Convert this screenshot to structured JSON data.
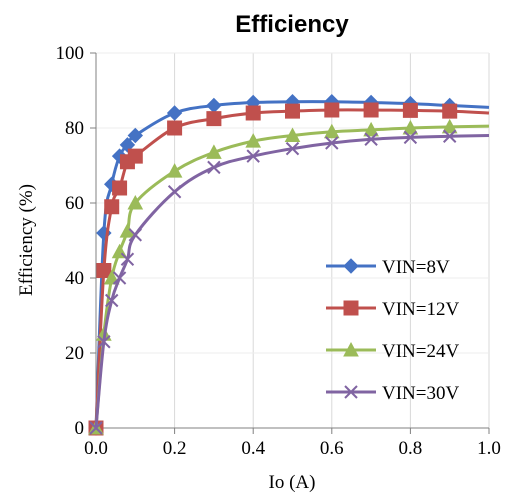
{
  "chart_data": {
    "type": "line",
    "title": "Efficiency",
    "xlabel": "Io (A)",
    "ylabel": "Efficiency (%)",
    "xlim": [
      0,
      1.0
    ],
    "ylim": [
      0,
      100
    ],
    "x_ticks": [
      "0.0",
      "0.2",
      "0.4",
      "0.6",
      "0.8",
      "1.0"
    ],
    "y_ticks": [
      "0",
      "20",
      "40",
      "60",
      "80",
      "100"
    ],
    "grid": "vertical",
    "legend_position": "right",
    "series": [
      {
        "name": "VIN=8V",
        "color": "#4472C4",
        "marker": "diamond",
        "points": [
          [
            0,
            0
          ],
          [
            0.02,
            52
          ],
          [
            0.04,
            65
          ],
          [
            0.06,
            72.5
          ],
          [
            0.08,
            75.5
          ],
          [
            0.1,
            78
          ],
          [
            0.2,
            84
          ],
          [
            0.3,
            86
          ],
          [
            0.4,
            86.8
          ],
          [
            0.5,
            87
          ],
          [
            0.6,
            87
          ],
          [
            0.7,
            86.8
          ],
          [
            0.8,
            86.5
          ],
          [
            0.9,
            86
          ],
          [
            1.0,
            85.5
          ]
        ],
        "marker_points": [
          0,
          1,
          2,
          3,
          4,
          5,
          6,
          7,
          8,
          9,
          10,
          11,
          12,
          13
        ]
      },
      {
        "name": "VIN=12V",
        "color": "#C0504D",
        "marker": "square",
        "points": [
          [
            0,
            0
          ],
          [
            0.02,
            42
          ],
          [
            0.04,
            59
          ],
          [
            0.06,
            64
          ],
          [
            0.08,
            71
          ],
          [
            0.1,
            72.5
          ],
          [
            0.2,
            80
          ],
          [
            0.3,
            82.5
          ],
          [
            0.4,
            84
          ],
          [
            0.5,
            84.5
          ],
          [
            0.6,
            84.8
          ],
          [
            0.7,
            84.8
          ],
          [
            0.8,
            84.7
          ],
          [
            0.9,
            84.5
          ],
          [
            1.0,
            84
          ]
        ],
        "marker_points": [
          0,
          1,
          2,
          3,
          4,
          5,
          6,
          7,
          8,
          9,
          10,
          11,
          12,
          13
        ]
      },
      {
        "name": "VIN=24V",
        "color": "#9BBB59",
        "marker": "triangle",
        "points": [
          [
            0,
            0
          ],
          [
            0.02,
            25
          ],
          [
            0.04,
            40
          ],
          [
            0.06,
            47
          ],
          [
            0.08,
            52.5
          ],
          [
            0.1,
            60
          ],
          [
            0.2,
            68.5
          ],
          [
            0.3,
            73.5
          ],
          [
            0.4,
            76.5
          ],
          [
            0.5,
            78
          ],
          [
            0.6,
            79
          ],
          [
            0.7,
            79.5
          ],
          [
            0.8,
            80
          ],
          [
            0.9,
            80.3
          ],
          [
            1.0,
            80.5
          ]
        ],
        "marker_points": [
          0,
          1,
          2,
          3,
          4,
          5,
          6,
          7,
          8,
          9,
          10,
          11,
          12,
          13
        ]
      },
      {
        "name": "VIN=30V",
        "color": "#8064A2",
        "marker": "x",
        "points": [
          [
            0,
            0
          ],
          [
            0.02,
            23
          ],
          [
            0.04,
            34
          ],
          [
            0.06,
            40
          ],
          [
            0.08,
            45
          ],
          [
            0.1,
            51.5
          ],
          [
            0.2,
            63
          ],
          [
            0.3,
            69.5
          ],
          [
            0.4,
            72.5
          ],
          [
            0.5,
            74.5
          ],
          [
            0.6,
            76
          ],
          [
            0.7,
            77
          ],
          [
            0.8,
            77.5
          ],
          [
            0.9,
            77.8
          ],
          [
            1.0,
            78
          ]
        ],
        "marker_points": [
          0,
          1,
          2,
          3,
          4,
          5,
          6,
          7,
          8,
          9,
          10,
          11,
          12,
          13
        ]
      }
    ]
  }
}
